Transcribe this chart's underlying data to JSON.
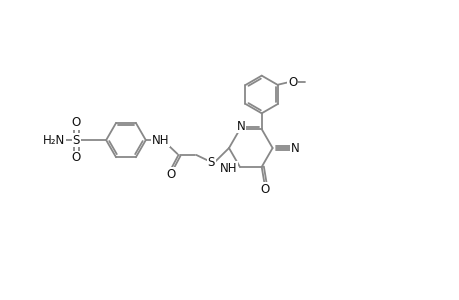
{
  "background_color": "#ffffff",
  "bond_color": "#888888",
  "text_color": "#111111",
  "lw": 1.3,
  "fs": 8.5,
  "figsize": [
    4.6,
    3.0
  ],
  "dpi": 100,
  "xlim": [
    0,
    46
  ],
  "ylim": [
    0,
    30
  ]
}
